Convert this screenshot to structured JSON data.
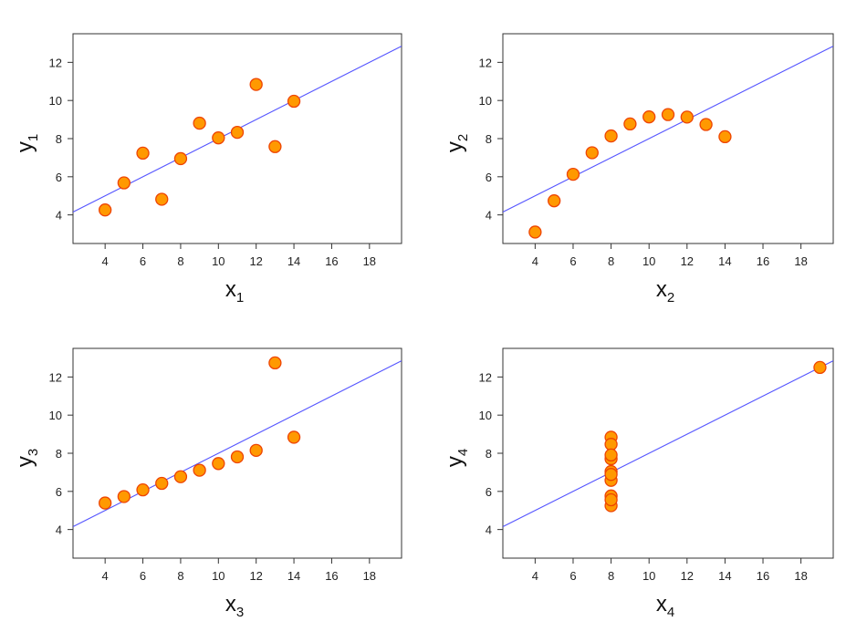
{
  "chart_data": [
    {
      "type": "scatter",
      "xlabel": "x",
      "xlabel_sub": "1",
      "ylabel": "y",
      "ylabel_sub": "1",
      "xlim": [
        2.3,
        19.7
      ],
      "ylim": [
        2.5,
        13.5
      ],
      "xticks": [
        4,
        6,
        8,
        10,
        12,
        14,
        16,
        18
      ],
      "yticks": [
        4,
        6,
        8,
        10,
        12
      ],
      "x": [
        10,
        8,
        13,
        9,
        11,
        14,
        6,
        4,
        12,
        7,
        5
      ],
      "y": [
        8.04,
        6.95,
        7.58,
        8.81,
        8.33,
        9.96,
        7.24,
        4.26,
        10.84,
        4.82,
        5.68
      ],
      "fit": {
        "intercept": 3.0,
        "slope": 0.5
      }
    },
    {
      "type": "scatter",
      "xlabel": "x",
      "xlabel_sub": "2",
      "ylabel": "y",
      "ylabel_sub": "2",
      "xlim": [
        2.3,
        19.7
      ],
      "ylim": [
        2.5,
        13.5
      ],
      "xticks": [
        4,
        6,
        8,
        10,
        12,
        14,
        16,
        18
      ],
      "yticks": [
        4,
        6,
        8,
        10,
        12
      ],
      "x": [
        10,
        8,
        13,
        9,
        11,
        14,
        6,
        4,
        12,
        7,
        5
      ],
      "y": [
        9.14,
        8.14,
        8.74,
        8.77,
        9.26,
        8.1,
        6.13,
        3.1,
        9.13,
        7.26,
        4.74
      ],
      "fit": {
        "intercept": 3.0,
        "slope": 0.5
      }
    },
    {
      "type": "scatter",
      "xlabel": "x",
      "xlabel_sub": "3",
      "ylabel": "y",
      "ylabel_sub": "3",
      "xlim": [
        2.3,
        19.7
      ],
      "ylim": [
        2.5,
        13.5
      ],
      "xticks": [
        4,
        6,
        8,
        10,
        12,
        14,
        16,
        18
      ],
      "yticks": [
        4,
        6,
        8,
        10,
        12
      ],
      "x": [
        10,
        8,
        13,
        9,
        11,
        14,
        6,
        4,
        12,
        7,
        5
      ],
      "y": [
        7.46,
        6.77,
        12.74,
        7.11,
        7.81,
        8.84,
        6.08,
        5.39,
        8.15,
        6.42,
        5.73
      ],
      "fit": {
        "intercept": 3.0,
        "slope": 0.5
      }
    },
    {
      "type": "scatter",
      "xlabel": "x",
      "xlabel_sub": "4",
      "ylabel": "y",
      "ylabel_sub": "4",
      "xlim": [
        2.3,
        19.7
      ],
      "ylim": [
        2.5,
        13.5
      ],
      "xticks": [
        4,
        6,
        8,
        10,
        12,
        14,
        16,
        18
      ],
      "yticks": [
        4,
        6,
        8,
        10,
        12
      ],
      "x": [
        8,
        8,
        8,
        8,
        8,
        8,
        8,
        19,
        8,
        8,
        8
      ],
      "y": [
        6.58,
        5.76,
        7.71,
        8.84,
        8.47,
        7.04,
        5.25,
        12.5,
        5.56,
        7.91,
        6.89
      ],
      "fit": {
        "intercept": 3.0,
        "slope": 0.5
      }
    }
  ],
  "colors": {
    "point_fill": "#ff9900",
    "point_stroke": "#ee4400",
    "fit_line": "#5555ff",
    "frame": "#333333"
  }
}
